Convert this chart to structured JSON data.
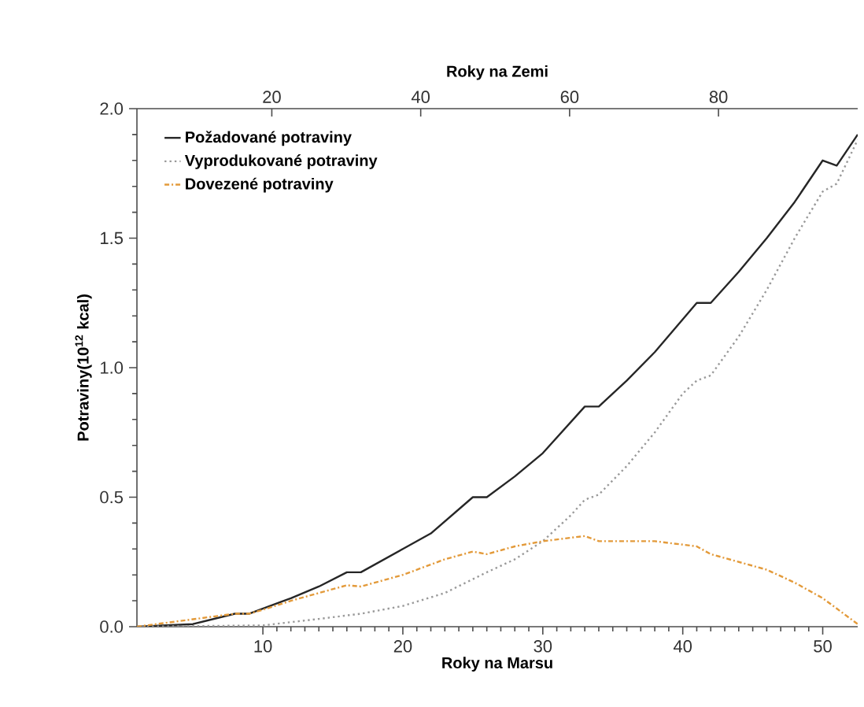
{
  "chart_data": {
    "type": "line",
    "xlabel": "Roky na Marsu",
    "ylabel": "Potraviny(10$^{12}$ kcal)",
    "x2label": "Roky na Zemi",
    "xlim": [
      1,
      52.5
    ],
    "xticks": [
      10,
      20,
      30,
      40,
      50
    ],
    "x2lim": [
      1.88,
      98.7
    ],
    "x2ticks": [
      20,
      40,
      60,
      80
    ],
    "ylim": [
      0,
      2
    ],
    "yticks": [
      {
        "value": 0,
        "label": "0.0"
      },
      {
        "value": 0.5,
        "label": "0.5"
      },
      {
        "value": 1,
        "label": "1.0"
      },
      {
        "value": 1.5,
        "label": "1.5"
      },
      {
        "value": 2,
        "label": "2.0"
      }
    ],
    "grid": false,
    "legend": "top left",
    "series": [
      {
        "name": "Požadované potraviny",
        "color": "#262626",
        "line_style": "solid",
        "x": [
          1,
          5,
          8,
          9,
          10,
          12,
          14,
          16,
          17,
          20,
          22,
          25,
          26,
          28,
          30,
          33,
          34,
          36,
          38,
          41,
          42,
          44,
          46,
          48,
          50,
          51,
          52.5
        ],
        "values": [
          0,
          0.01,
          0.05,
          0.05,
          0.07,
          0.11,
          0.155,
          0.21,
          0.21,
          0.3,
          0.36,
          0.5,
          0.5,
          0.58,
          0.67,
          0.85,
          0.85,
          0.95,
          1.06,
          1.25,
          1.25,
          1.37,
          1.5,
          1.64,
          1.8,
          1.78,
          1.9
        ]
      },
      {
        "name": "Vyprodukované potraviny",
        "color": "#9a9a9a",
        "line_style": "dotted",
        "x": [
          1,
          10,
          14,
          17,
          20,
          23,
          26,
          28,
          30,
          32,
          33,
          34,
          36,
          38,
          40,
          41,
          42,
          44,
          46,
          48,
          50,
          51,
          52.5
        ],
        "values": [
          0,
          0.005,
          0.03,
          0.05,
          0.08,
          0.13,
          0.21,
          0.26,
          0.33,
          0.43,
          0.49,
          0.51,
          0.62,
          0.75,
          0.9,
          0.95,
          0.97,
          1.12,
          1.3,
          1.5,
          1.68,
          1.71,
          1.88
        ]
      },
      {
        "name": "Dovezené potraviny",
        "color": "#e39a3a",
        "line_style": "dashed",
        "x": [
          1,
          8,
          9,
          10,
          12,
          14,
          16,
          17,
          20,
          23,
          25,
          26,
          28,
          30,
          33,
          34,
          38,
          41,
          42,
          46,
          48,
          50,
          52.5
        ],
        "values": [
          0,
          0.05,
          0.05,
          0.065,
          0.1,
          0.13,
          0.16,
          0.155,
          0.2,
          0.26,
          0.29,
          0.28,
          0.31,
          0.33,
          0.35,
          0.33,
          0.33,
          0.31,
          0.28,
          0.22,
          0.17,
          0.11,
          0.01
        ]
      }
    ]
  }
}
